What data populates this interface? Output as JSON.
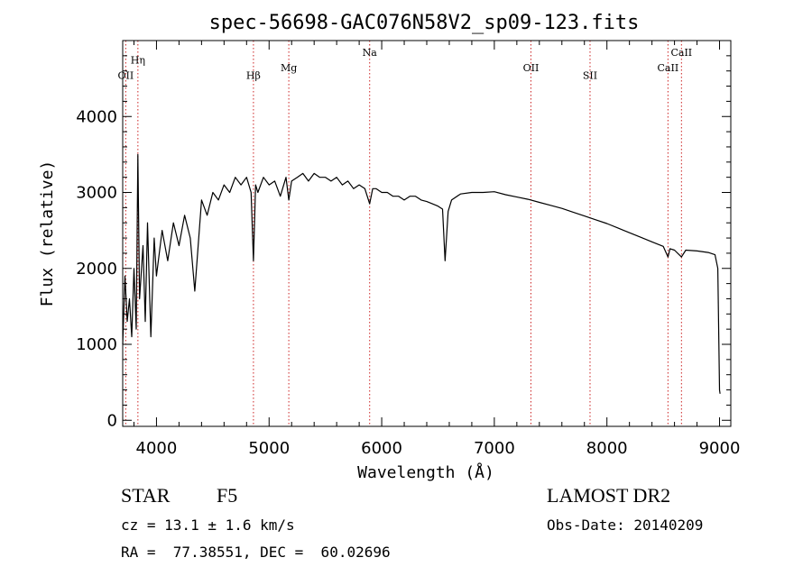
{
  "chart_data": {
    "type": "line",
    "title": "spec-56698-GAC076N58V2_sp09-123.fits",
    "xlabel": "Wavelength (Å)",
    "ylabel": "Flux (relative)",
    "xlim": [
      3700,
      9100
    ],
    "ylim": [
      -80,
      5000
    ],
    "xticks": [
      4000,
      5000,
      6000,
      7000,
      8000,
      9000
    ],
    "yticks": [
      0,
      1000,
      2000,
      3000,
      4000
    ],
    "grid": false,
    "line_color": "#000000",
    "marker_color": "#cc2222",
    "spectrum": {
      "x": [
        3700,
        3720,
        3740,
        3760,
        3780,
        3800,
        3820,
        3835,
        3850,
        3880,
        3900,
        3920,
        3950,
        3980,
        4000,
        4050,
        4100,
        4150,
        4200,
        4250,
        4300,
        4340,
        4400,
        4450,
        4500,
        4550,
        4600,
        4650,
        4700,
        4750,
        4800,
        4840,
        4861,
        4880,
        4900,
        4950,
        5000,
        5050,
        5100,
        5150,
        5175,
        5200,
        5250,
        5300,
        5350,
        5400,
        5450,
        5500,
        5550,
        5600,
        5650,
        5700,
        5750,
        5800,
        5850,
        5893,
        5920,
        5950,
        6000,
        6050,
        6100,
        6150,
        6200,
        6250,
        6300,
        6350,
        6400,
        6450,
        6500,
        6540,
        6563,
        6590,
        6620,
        6700,
        6800,
        6900,
        7000,
        7100,
        7200,
        7300,
        7400,
        7500,
        7600,
        7700,
        7800,
        7900,
        8000,
        8100,
        8200,
        8300,
        8400,
        8500,
        8542,
        8560,
        8600,
        8662,
        8700,
        8800,
        8900,
        8960,
        8985,
        9000,
        9005
      ],
      "y": [
        1000,
        1900,
        1300,
        1600,
        1100,
        2000,
        1200,
        3500,
        1600,
        2300,
        1300,
        2600,
        1100,
        2400,
        1900,
        2500,
        2100,
        2600,
        2300,
        2700,
        2400,
        1700,
        2900,
        2700,
        3000,
        2900,
        3100,
        3000,
        3200,
        3100,
        3200,
        3000,
        2100,
        3100,
        3000,
        3200,
        3100,
        3150,
        2950,
        3200,
        2900,
        3150,
        3200,
        3250,
        3150,
        3250,
        3200,
        3200,
        3150,
        3200,
        3100,
        3150,
        3050,
        3100,
        3050,
        2850,
        3050,
        3050,
        3000,
        3000,
        2950,
        2950,
        2900,
        2950,
        2950,
        2900,
        2880,
        2850,
        2820,
        2780,
        2100,
        2750,
        2900,
        2980,
        3000,
        3000,
        3010,
        2970,
        2940,
        2910,
        2870,
        2830,
        2790,
        2740,
        2690,
        2640,
        2590,
        2530,
        2470,
        2410,
        2350,
        2290,
        2150,
        2260,
        2240,
        2150,
        2240,
        2230,
        2210,
        2180,
        2000,
        400,
        350
      ]
    },
    "line_markers": [
      {
        "label": "OII",
        "x": 3727,
        "row": 2
      },
      {
        "label": "Hη",
        "x": 3835,
        "row": 1
      },
      {
        "label": "Hβ",
        "x": 4861,
        "row": 2
      },
      {
        "label": "Mg",
        "x": 5175,
        "row": 1.5
      },
      {
        "label": "Na",
        "x": 5893,
        "row": 0.5
      },
      {
        "label": "OII",
        "x": 7325,
        "row": 1.5
      },
      {
        "label": "SII",
        "x": 7850,
        "row": 2
      },
      {
        "label": "CaII",
        "x": 8542,
        "row": 1.5
      },
      {
        "label": "CaII",
        "x": 8662,
        "row": 0.5
      }
    ]
  },
  "info": {
    "object_class": "STAR",
    "subclass": "F5",
    "survey": "LAMOST DR2",
    "cz": "cz = 13.1 ± 1.6 km/s",
    "obs_date": "Obs-Date: 20140209",
    "coords": "RA =  77.38551, DEC =  60.02696"
  }
}
